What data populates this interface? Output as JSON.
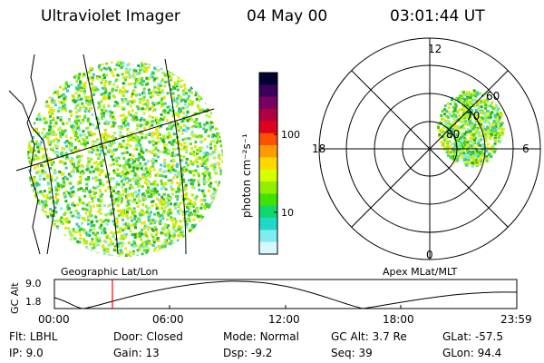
{
  "header": {
    "instrument": "Ultraviolet Imager",
    "date": "04 May 00",
    "time": "03:01:44 UT"
  },
  "left_panel": {
    "label": "Geographic Lat/Lon"
  },
  "colorbar": {
    "unit_label": "photon cm⁻²s⁻¹",
    "ticks": [
      "100",
      "10"
    ],
    "colors": [
      "#000030",
      "#3a005a",
      "#7a0060",
      "#b00040",
      "#e00020",
      "#ff5000",
      "#ff9a00",
      "#ffd800",
      "#d8ff00",
      "#90f000",
      "#40e000",
      "#10d870",
      "#20d8c8",
      "#80ecf0",
      "#d8f8ff"
    ]
  },
  "right_panel": {
    "label": "Apex MLat/MLT",
    "mlt_labels": {
      "top": "12",
      "bottom": "0",
      "left": "18",
      "right": "6"
    },
    "lat_labels": [
      "60",
      "70",
      "80"
    ]
  },
  "orbit_plot": {
    "ylabel": "GC Alt",
    "yticks": [
      "9.0",
      "1.8"
    ],
    "xticks": [
      "00:00",
      "06:00",
      "12:00",
      "18:00",
      "23:59"
    ],
    "marker_color": "#ff0000"
  },
  "info": {
    "row1": [
      {
        "key": "Flt:",
        "value": "LBHL"
      },
      {
        "key": "Door:",
        "value": "Closed"
      },
      {
        "key": "Mode:",
        "value": "Normal"
      },
      {
        "key": "GC Alt:",
        "value": "3.7 Re"
      },
      {
        "key": "GLat:",
        "value": "-57.5"
      }
    ],
    "row2": [
      {
        "key": "IP:",
        "value": "9.0"
      },
      {
        "key": "Gain:",
        "value": "13"
      },
      {
        "key": "Dsp:",
        "value": "-9.2"
      },
      {
        "key": "Seq:",
        "value": "39"
      },
      {
        "key": "GLon:",
        "value": "94.4"
      }
    ]
  }
}
